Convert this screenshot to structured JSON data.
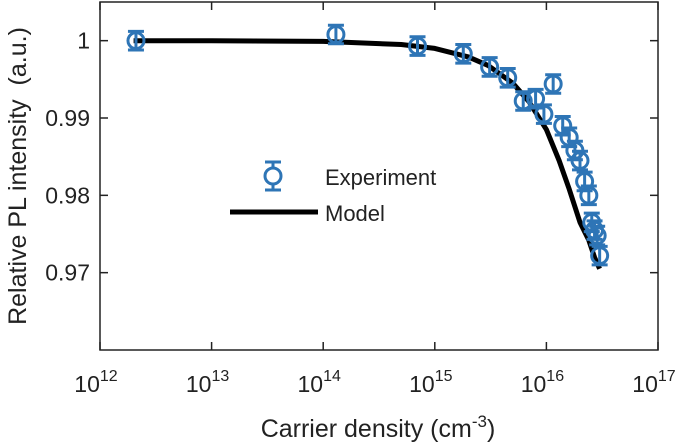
{
  "chart_data": {
    "type": "scatter",
    "xlabel": "Carrier density (cm",
    "xlabel_sup": "-3",
    "xlabel_close": ")",
    "ylabel": "Relative PL intensity  (a.u.)",
    "xscale": "log",
    "xlim": [
      1000000000000.0,
      1e+17
    ],
    "ylim": [
      0.96,
      1.005
    ],
    "grid": false,
    "legend_position": "center",
    "x_ticks": [
      {
        "value": 1000000000000.0,
        "base": "10",
        "exp": "12"
      },
      {
        "value": 10000000000000.0,
        "base": "10",
        "exp": "13"
      },
      {
        "value": 100000000000000.0,
        "base": "10",
        "exp": "14"
      },
      {
        "value": 1000000000000000.0,
        "base": "10",
        "exp": "15"
      },
      {
        "value": 1e+16,
        "base": "10",
        "exp": "16"
      },
      {
        "value": 1e+17,
        "base": "10",
        "exp": "17"
      }
    ],
    "y_ticks": [
      {
        "value": 1.0,
        "label": "1"
      },
      {
        "value": 0.99,
        "label": "0.99"
      },
      {
        "value": 0.98,
        "label": "0.98"
      },
      {
        "value": 0.97,
        "label": "0.97"
      }
    ],
    "series": [
      {
        "name": "Experiment",
        "kind": "markers",
        "color": "#2e75b6",
        "x": [
          2100000000000.0,
          130000000000000.0,
          700000000000000.0,
          1800000000000000.0,
          3100000000000000.0,
          4500000000000000.0,
          6200000000000000.0,
          8000000000000000.0,
          9500000000000000.0,
          1.15e+16,
          1.4e+16,
          1.6e+16,
          1.8e+16,
          2e+16,
          2.2e+16,
          2.4e+16,
          2.55e+16,
          2.7e+16,
          2.85e+16,
          3e+16
        ],
        "y": [
          1.0,
          1.0008,
          0.9993,
          0.9983,
          0.9966,
          0.9952,
          0.9922,
          0.9925,
          0.9905,
          0.9944,
          0.989,
          0.9875,
          0.9858,
          0.9845,
          0.9818,
          0.98,
          0.9765,
          0.9755,
          0.9748,
          0.9722
        ],
        "err": [
          0.0012,
          0.0012,
          0.0012,
          0.0012,
          0.0012,
          0.0012,
          0.0012,
          0.0012,
          0.0012,
          0.0012,
          0.0012,
          0.0012,
          0.0012,
          0.0012,
          0.0012,
          0.0012,
          0.0012,
          0.0012,
          0.0012,
          0.0012
        ]
      },
      {
        "name": "Model",
        "kind": "line",
        "color": "#000000",
        "x": [
          2000000000000.0,
          10000000000000.0,
          100000000000000.0,
          500000000000000.0,
          1000000000000000.0,
          2000000000000000.0,
          3000000000000000.0,
          5000000000000000.0,
          7000000000000000.0,
          1e+16,
          1.3e+16,
          1.6e+16,
          2e+16,
          2.4e+16,
          2.7e+16,
          3e+16
        ],
        "y": [
          1.0,
          1.0,
          0.9999,
          0.9995,
          0.999,
          0.9979,
          0.9968,
          0.9945,
          0.9921,
          0.9885,
          0.9845,
          0.9808,
          0.9765,
          0.9742,
          0.972,
          0.9705
        ]
      }
    ]
  }
}
